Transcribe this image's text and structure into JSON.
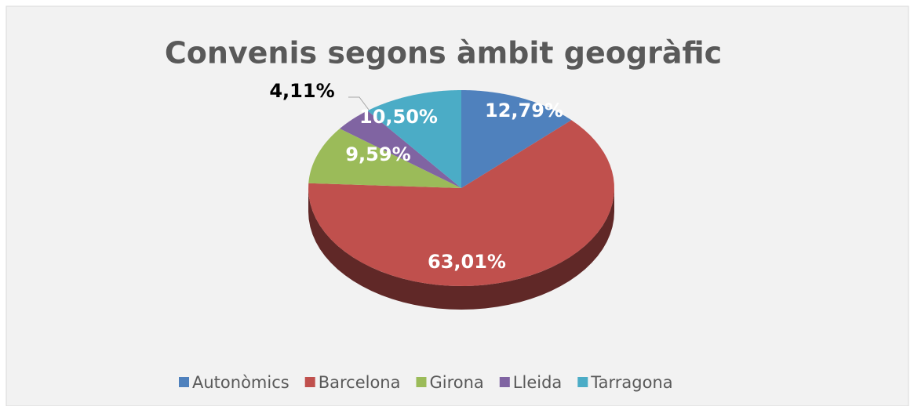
{
  "chart_data": {
    "type": "pie",
    "title": "Convenis segons àmbit geogràfic",
    "categories": [
      "Autonòmics",
      "Barcelona",
      "Girona",
      "Lleida",
      "Tarragona"
    ],
    "values": [
      12.79,
      63.01,
      9.59,
      4.11,
      10.5
    ],
    "value_labels": [
      "12,79%",
      "63,01%",
      "9,59%",
      "4,11%",
      "10,50%"
    ],
    "colors": [
      "#4f81bd",
      "#c0504d",
      "#9bbb59",
      "#8064a2",
      "#4bacc6"
    ],
    "legend": "bottom"
  }
}
